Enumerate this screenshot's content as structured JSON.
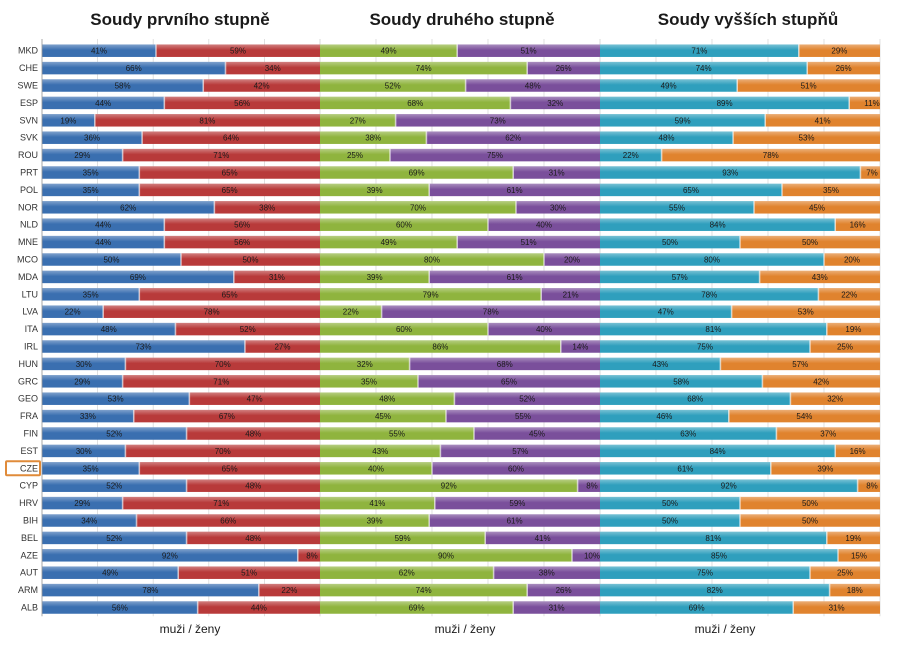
{
  "chart_data": {
    "type": "bar",
    "orientation": "horizontal",
    "stacked": "100%",
    "value_unit": "%",
    "highlighted_category": "CZE",
    "categories": [
      "MKD",
      "CHE",
      "SWE",
      "ESP",
      "SVN",
      "SVK",
      "ROU",
      "PRT",
      "POL",
      "NOR",
      "NLD",
      "MNE",
      "MCO",
      "MDA",
      "LTU",
      "LVA",
      "ITA",
      "IRL",
      "HUN",
      "GRC",
      "GEO",
      "FRA",
      "FIN",
      "EST",
      "CZE",
      "CYP",
      "HRV",
      "BIH",
      "BEL",
      "AZE",
      "AUT",
      "ARM",
      "ALB"
    ],
    "panels": [
      {
        "title": "Soudy prvního stupně",
        "xlabel": "muži / ženy",
        "colors": [
          "#3a6fb0",
          "#b83a3a"
        ],
        "men": [
          41,
          66,
          58,
          44,
          19,
          36,
          29,
          35,
          35,
          62,
          44,
          44,
          50,
          69,
          35,
          22,
          48,
          73,
          30,
          29,
          53,
          33,
          52,
          30,
          35,
          52,
          29,
          34,
          52,
          92,
          49,
          78,
          56
        ],
        "women": [
          59,
          34,
          42,
          56,
          81,
          64,
          71,
          65,
          65,
          38,
          56,
          56,
          50,
          31,
          65,
          78,
          52,
          27,
          70,
          71,
          47,
          67,
          48,
          70,
          65,
          48,
          71,
          66,
          48,
          8,
          51,
          22,
          44
        ]
      },
      {
        "title": "Soudy druhého stupně",
        "xlabel": "muži / ženy",
        "colors": [
          "#8fb43e",
          "#7a4f9b"
        ],
        "men": [
          49,
          74,
          52,
          68,
          27,
          38,
          25,
          69,
          39,
          70,
          60,
          49,
          80,
          39,
          79,
          22,
          60,
          86,
          32,
          35,
          48,
          45,
          55,
          43,
          40,
          92,
          41,
          39,
          59,
          90,
          62,
          74,
          69
        ],
        "women": [
          51,
          26,
          48,
          32,
          73,
          62,
          75,
          31,
          61,
          30,
          40,
          51,
          20,
          61,
          21,
          78,
          40,
          14,
          68,
          65,
          52,
          55,
          45,
          57,
          60,
          8,
          59,
          61,
          41,
          10,
          38,
          26,
          31
        ]
      },
      {
        "title": "Soudy vyšších stupňů",
        "xlabel": "muži / ženy",
        "colors": [
          "#2f9fbd",
          "#e0832e"
        ],
        "men": [
          71,
          74,
          49,
          89,
          59,
          48,
          22,
          93,
          65,
          55,
          84,
          50,
          80,
          57,
          78,
          47,
          81,
          75,
          43,
          58,
          68,
          46,
          63,
          84,
          61,
          92,
          50,
          50,
          81,
          85,
          75,
          82,
          69
        ],
        "women": [
          29,
          26,
          51,
          11,
          41,
          53,
          78,
          7,
          35,
          45,
          16,
          50,
          20,
          43,
          22,
          53,
          19,
          25,
          57,
          42,
          32,
          54,
          37,
          16,
          39,
          8,
          50,
          50,
          19,
          15,
          25,
          18,
          31
        ]
      }
    ]
  }
}
